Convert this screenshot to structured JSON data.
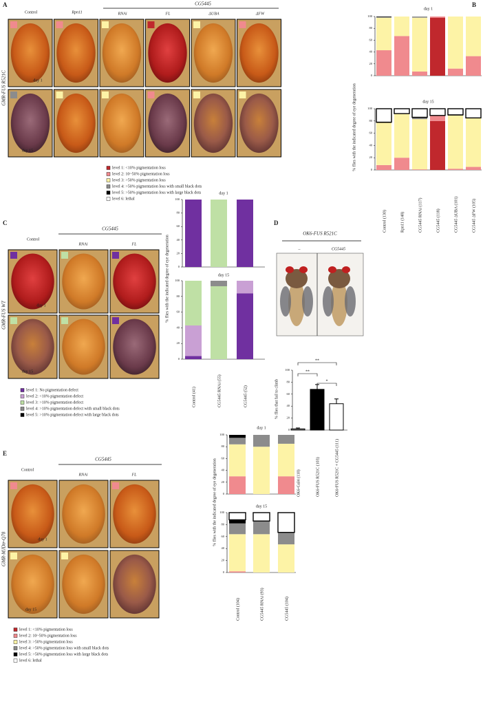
{
  "figure": {
    "labels": [
      "A",
      "B",
      "C",
      "D",
      "E"
    ],
    "A": {
      "genotype": "GMR-FUS R521C",
      "control": "Control",
      "rpn11": "Rpn11",
      "gene": "CG5445",
      "columns": [
        "RNAi",
        "FL",
        "ΔUBA",
        "ΔFW"
      ],
      "days": [
        "day 1",
        "day 15"
      ]
    },
    "C": {
      "genotype": "GMR-FUS WT",
      "control": "Control",
      "gene": "CG5445",
      "columns": [
        "RNAi",
        "FL"
      ],
      "days": [
        "day 1",
        "day 15"
      ]
    },
    "D": {
      "header": "OK6-FUS R521C",
      "columns": [
        "–",
        "CG5445"
      ]
    },
    "E": {
      "genotype": "GMR-MJDtr-Q78",
      "control": "Control",
      "gene": "CG5445",
      "columns": [
        "RNAi",
        "FL"
      ],
      "days": [
        "day 1",
        "day 15"
      ]
    }
  },
  "chart_data": [
    {
      "type": "stacked_bar",
      "title": "day 1",
      "ylabel": "% flies with the indicated degree of eye degeneration",
      "ylim": [
        0,
        100
      ],
      "yticks": [
        0,
        20,
        40,
        60,
        80,
        100
      ],
      "series": [
        {
          "name": "level 1: <10% pigmentation loss",
          "color": "#c0282d",
          "values": [
            0,
            0,
            0,
            98,
            0,
            0
          ]
        },
        {
          "name": "level 2: 10~50% pigmentation loss",
          "color": "#f08a8e",
          "values": [
            43,
            67,
            7,
            2,
            12,
            33
          ]
        },
        {
          "name": "level 3: >50% pigmentation loss",
          "color": "#fdf3a6",
          "values": [
            55,
            33,
            91,
            0,
            88,
            67
          ]
        },
        {
          "name": "level 4: >50% pigmentation loss with small black dots",
          "color": "#8c8c8c",
          "values": [
            1,
            0,
            2,
            0,
            0,
            0
          ]
        },
        {
          "name": "level 5: >50% pigmentation loss with large black dots",
          "color": "#000000",
          "values": [
            1,
            0,
            0,
            0,
            0,
            0
          ]
        },
        {
          "name": "level 6: lethal",
          "color": "#ffffff",
          "values": [
            0,
            0,
            0,
            0,
            0,
            0
          ]
        }
      ]
    },
    {
      "type": "stacked_bar",
      "title": "day 15",
      "ylim": [
        0,
        100
      ],
      "yticks": [
        0,
        20,
        40,
        60,
        80,
        100
      ],
      "categories": [
        "Control (130)",
        "Rpn11 (148)",
        "CG5445 RNAi (117)",
        "CG5445 (118)",
        "CG5445 ΔUBA (101)",
        "CG5445 ΔFW (105)"
      ],
      "series": [
        {
          "color": "#c0282d",
          "values": [
            0,
            0,
            0,
            80,
            0,
            0
          ]
        },
        {
          "color": "#f08a8e",
          "values": [
            8,
            20,
            1,
            9,
            2,
            5
          ]
        },
        {
          "color": "#fdf3a6",
          "values": [
            69,
            72,
            82,
            0,
            87,
            80
          ]
        },
        {
          "color": "#8c8c8c",
          "values": [
            0,
            0,
            2,
            0,
            0,
            0
          ]
        },
        {
          "color": "#000000",
          "values": [
            1,
            0,
            1,
            0,
            1,
            0
          ]
        },
        {
          "color": "#ffffff",
          "values": [
            22,
            8,
            14,
            11,
            10,
            15
          ]
        }
      ]
    },
    {
      "type": "stacked_bar",
      "title": "day 1",
      "ylabel": "% flies with the indicated degree of eye degeneration",
      "ylim": [
        0,
        100
      ],
      "yticks": [
        0,
        20,
        40,
        60,
        80,
        100
      ],
      "series": [
        {
          "name": "level 1: No pigmentation defect",
          "color": "#7030a0",
          "values": [
            100,
            0,
            100
          ]
        },
        {
          "name": "level 2: <10% pigmentation defect",
          "color": "#c9a0d4",
          "values": [
            0,
            0,
            0
          ]
        },
        {
          "name": "level 3: >10% pigmentation defect",
          "color": "#bfe0a5",
          "values": [
            0,
            100,
            0
          ]
        },
        {
          "name": "level 4: >10% pigmentation defect with small black dots",
          "color": "#8c8c8c",
          "values": [
            0,
            0,
            0
          ]
        },
        {
          "name": "level 5: >10% pigmentation defect with large black dots",
          "color": "#000000",
          "values": [
            0,
            0,
            0
          ]
        }
      ]
    },
    {
      "type": "stacked_bar",
      "title": "day 15",
      "ylim": [
        0,
        100
      ],
      "yticks": [
        0,
        20,
        40,
        60,
        80,
        100
      ],
      "categories": [
        "Control (41)",
        "CG5445 RNAi (55)",
        "CG5445 (52)"
      ],
      "series": [
        {
          "color": "#7030a0",
          "values": [
            4,
            0,
            84
          ]
        },
        {
          "color": "#c9a0d4",
          "values": [
            39,
            0,
            16
          ]
        },
        {
          "color": "#bfe0a5",
          "values": [
            57,
            93,
            0
          ]
        },
        {
          "color": "#8c8c8c",
          "values": [
            0,
            7,
            0
          ]
        },
        {
          "color": "#000000",
          "values": [
            0,
            0,
            0
          ]
        }
      ]
    },
    {
      "type": "bar",
      "ylabel": "% flies that fail to climb",
      "ylim": [
        0,
        100
      ],
      "yticks": [
        0,
        20,
        40,
        60,
        80,
        100
      ],
      "categories": [
        "OK6-Gal4 (110)",
        "OK6-FUS R521C (103)",
        "OK6-FUS R521C + CG5445 (111)"
      ],
      "values": [
        2,
        68,
        44
      ],
      "errors": [
        1.5,
        8,
        8
      ],
      "colors": [
        "#999999",
        "#000000",
        "#ffffff"
      ],
      "annotations": [
        "**",
        "**",
        "*"
      ]
    },
    {
      "type": "stacked_bar",
      "title": "day 1",
      "ylabel": "% flies with the indicated degree of eye degeneration",
      "ylim": [
        0,
        100
      ],
      "yticks": [
        0,
        20,
        40,
        60,
        80,
        100
      ],
      "series": [
        {
          "name": "level 1: <10% pigmentation loss",
          "color": "#c0282d",
          "values": [
            0,
            0,
            0
          ]
        },
        {
          "name": "level 2: 10~50% pigmentation loss",
          "color": "#f08a8e",
          "values": [
            30,
            0,
            30
          ]
        },
        {
          "name": "level 3: >50% pigmentation loss",
          "color": "#fdf3a6",
          "values": [
            54,
            80,
            55
          ]
        },
        {
          "name": "level 4: >50% pigmentation loss with small black dots",
          "color": "#8c8c8c",
          "values": [
            11,
            20,
            15
          ]
        },
        {
          "name": "level 5: >50% pigmentation loss with large black dots",
          "color": "#000000",
          "values": [
            5,
            0,
            0
          ]
        },
        {
          "name": "level 6: lethal",
          "color": "#ffffff",
          "values": [
            0,
            0,
            0
          ]
        }
      ]
    },
    {
      "type": "stacked_bar",
      "title": "day 15",
      "ylim": [
        0,
        100
      ],
      "yticks": [
        0,
        20,
        40,
        60,
        80,
        100
      ],
      "categories": [
        "Control (104)",
        "CG5445 RNAi (93)",
        "CG5445 (104)"
      ],
      "series": [
        {
          "color": "#c0282d",
          "values": [
            0,
            0,
            0
          ]
        },
        {
          "color": "#f08a8e",
          "values": [
            2,
            0,
            0
          ]
        },
        {
          "color": "#fdf3a6",
          "values": [
            62,
            64,
            47
          ]
        },
        {
          "color": "#8c8c8c",
          "values": [
            18,
            22,
            20
          ]
        },
        {
          "color": "#000000",
          "values": [
            6,
            0,
            0
          ]
        },
        {
          "color": "#ffffff",
          "values": [
            12,
            14,
            33
          ]
        }
      ]
    }
  ]
}
